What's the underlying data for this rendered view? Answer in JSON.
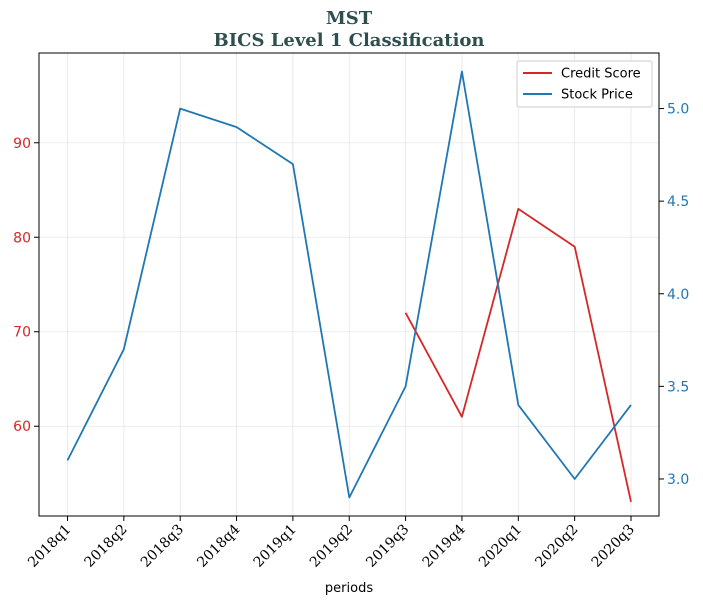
{
  "chart_data": {
    "type": "line",
    "title": "MST",
    "subtitle": "BICS Level 1 Classification",
    "xlabel": "periods",
    "categories": [
      "2018q1",
      "2018q2",
      "2018q3",
      "2018q4",
      "2019q1",
      "2019q2",
      "2019q3",
      "2019q4",
      "2020q1",
      "2020q2",
      "2020q3"
    ],
    "left_axis": {
      "ylim": [
        50.5,
        99.5
      ],
      "ticks": [
        60,
        70,
        80,
        90
      ],
      "color": "#d62728"
    },
    "right_axis": {
      "ylim": [
        2.8,
        5.3
      ],
      "ticks": [
        "3.0",
        "3.5",
        "4.0",
        "4.5",
        "5.0"
      ],
      "color": "#1f77b4"
    },
    "grid": true,
    "legend_position": "top-right",
    "series": [
      {
        "name": "Credit Score",
        "axis": "left",
        "color": "#d62728",
        "values": [
          null,
          null,
          null,
          null,
          null,
          null,
          72,
          61,
          83,
          79,
          52
        ]
      },
      {
        "name": "Stock Price",
        "axis": "right",
        "color": "#1f77b4",
        "values": [
          3.1,
          3.7,
          5.0,
          4.9,
          4.7,
          2.9,
          3.5,
          5.2,
          3.4,
          3.0,
          3.4
        ]
      }
    ]
  }
}
